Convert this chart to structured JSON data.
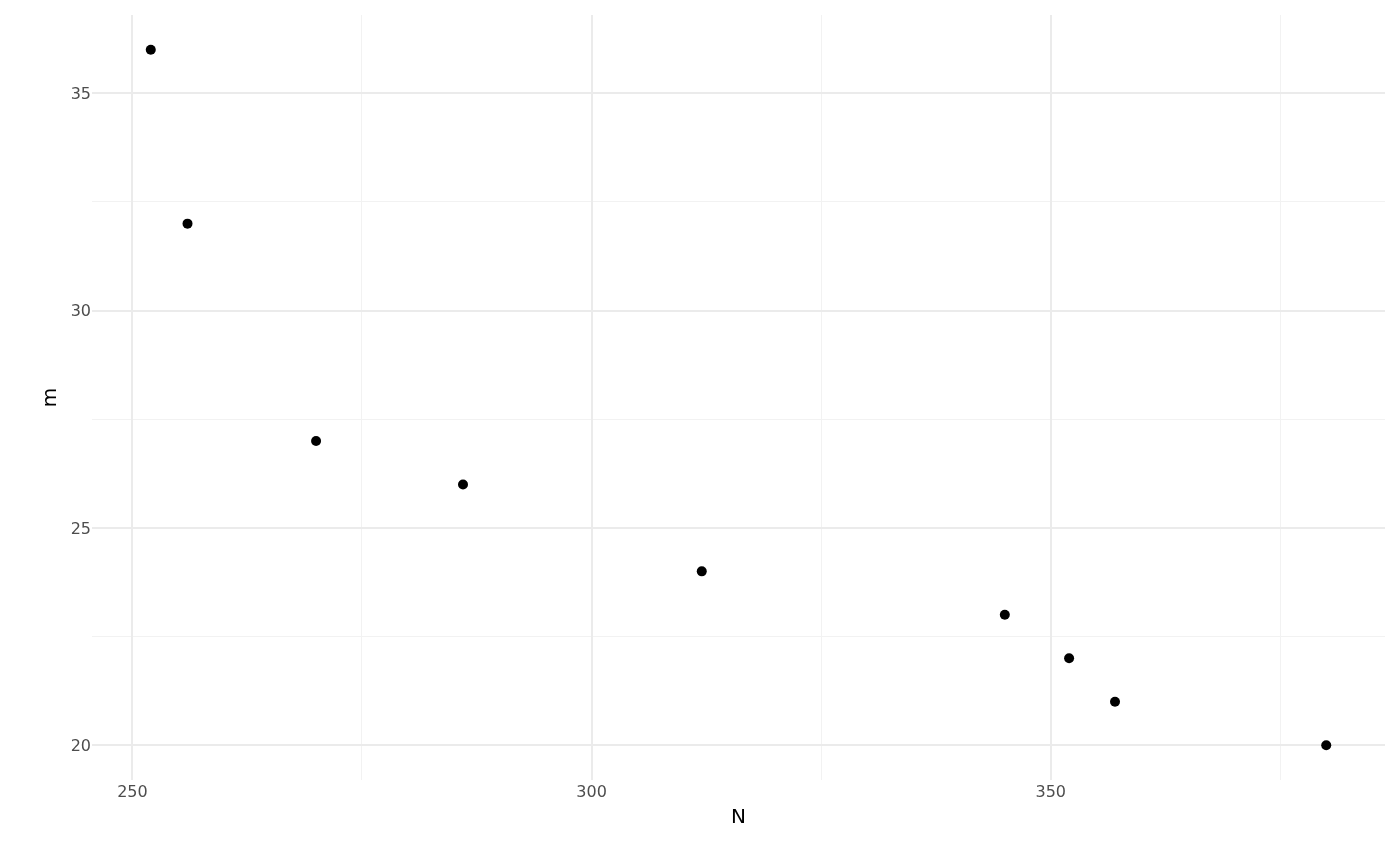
{
  "chart_data": {
    "type": "scatter",
    "xlabel": "N",
    "ylabel": "m",
    "x": [
      252,
      256,
      270,
      286,
      312,
      345,
      352,
      357,
      380
    ],
    "values": [
      36,
      32,
      27,
      26,
      24,
      23,
      22,
      21,
      20
    ],
    "color": "#000000",
    "marker": "circle",
    "xlim": [
      245.6,
      386.4
    ],
    "ylim": [
      19.2,
      36.8
    ],
    "xticks": [
      250,
      {
        "value": 275,
        "label": null
      },
      300,
      {
        "value": 325,
        "label": null
      },
      350,
      {
        "value": 375,
        "label": null
      }
    ],
    "yticks": [
      20,
      {
        "value": 22.5,
        "label": null
      },
      25,
      {
        "value": 27.5,
        "label": null
      },
      30,
      {
        "value": 32.5,
        "label": null
      },
      35
    ],
    "grid": true
  }
}
